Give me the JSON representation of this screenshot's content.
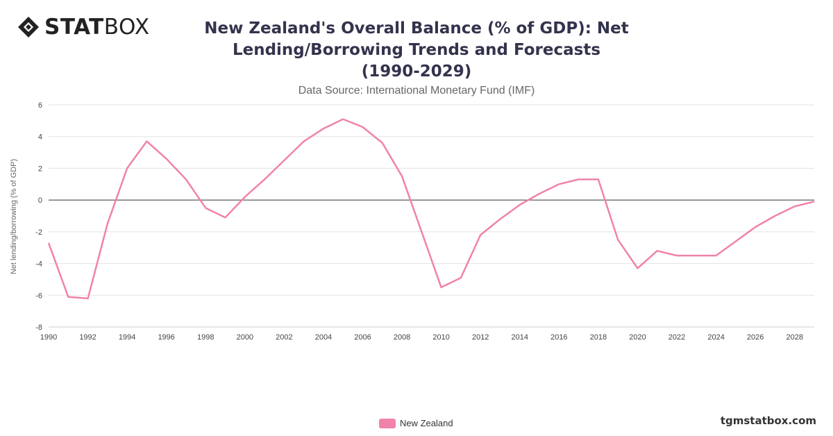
{
  "brand": {
    "logo_bold": "STAT",
    "logo_light": "BOX"
  },
  "title_lines": [
    "New Zealand's Overall Balance (% of GDP): Net",
    "Lending/Borrowing Trends and Forecasts",
    "(1990-2029)"
  ],
  "subtitle": "Data Source: International Monetary Fund (IMF)",
  "credit": "tgmstatbox.com",
  "colors": {
    "series": "#f082ac",
    "grid": "#e3e3e3",
    "zero_line": "#333333"
  },
  "chart_data": {
    "type": "line",
    "ylabel": "Net lending/borrowing (% of GDP)",
    "xlabel": "",
    "xlim": [
      1990,
      2029
    ],
    "ylim": [
      -8,
      6
    ],
    "x_ticks": [
      "1990",
      "1992",
      "1994",
      "1996",
      "1998",
      "2000",
      "2002",
      "2004",
      "2006",
      "2008",
      "2010",
      "2012",
      "2014",
      "2016",
      "2018",
      "2020",
      "2022",
      "2024",
      "2026",
      "2028"
    ],
    "y_ticks": [
      "6",
      "4",
      "2",
      "0",
      "-2",
      "-4",
      "-6",
      "-8"
    ],
    "grid": true,
    "legend_position": "bottom-center",
    "series": [
      {
        "name": "New Zealand",
        "x": [
          1990,
          1991,
          1992,
          1993,
          1994,
          1995,
          1996,
          1997,
          1998,
          1999,
          2000,
          2001,
          2002,
          2003,
          2004,
          2005,
          2006,
          2007,
          2008,
          2009,
          2010,
          2011,
          2012,
          2013,
          2014,
          2015,
          2016,
          2017,
          2018,
          2019,
          2020,
          2021,
          2022,
          2023,
          2024,
          2025,
          2026,
          2027,
          2028,
          2029
        ],
        "values": [
          -2.7,
          -6.1,
          -6.2,
          -1.5,
          2.0,
          3.7,
          2.6,
          1.3,
          -0.5,
          -1.1,
          0.2,
          1.3,
          2.5,
          3.7,
          4.5,
          5.1,
          4.6,
          3.6,
          1.5,
          -2.0,
          -5.5,
          -4.9,
          -2.2,
          -1.2,
          -0.3,
          0.4,
          1.0,
          1.3,
          1.3,
          -2.5,
          -4.3,
          -3.2,
          -3.5,
          -3.5,
          -3.5,
          -2.6,
          -1.7,
          -1.0,
          -0.4,
          -0.1
        ]
      }
    ]
  }
}
